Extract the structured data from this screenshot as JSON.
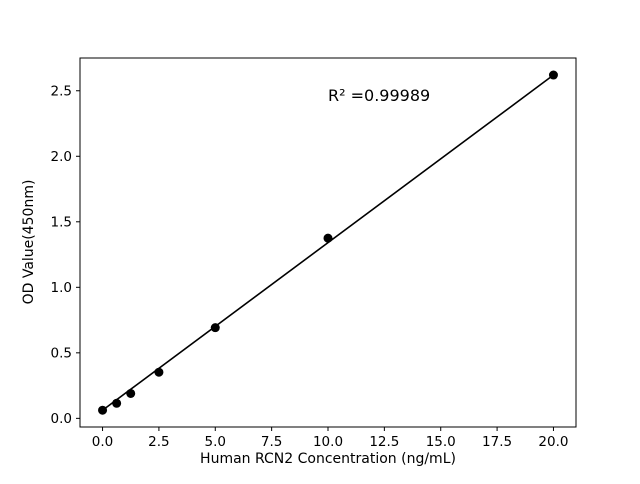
{
  "figure": {
    "background": "#ffffff"
  },
  "chart_data": {
    "type": "scatter",
    "xlabel": "Human RCN2 Concentration (ng/mL)",
    "ylabel": "OD Value(450nm)",
    "x": [
      0,
      0.625,
      1.25,
      2.5,
      5,
      10,
      20
    ],
    "y": [
      0.062,
      0.115,
      0.19,
      0.352,
      0.692,
      1.375,
      2.62
    ],
    "fit_line": {
      "x1": 0,
      "y1": 0.062,
      "x2": 20,
      "y2": 2.62
    },
    "xlim": [
      -1.0,
      21.0
    ],
    "ylim": [
      -0.066,
      2.75
    ],
    "xticks": [
      0.0,
      2.5,
      5.0,
      7.5,
      10.0,
      12.5,
      15.0,
      17.5,
      20.0
    ],
    "xtick_labels": [
      "0.0",
      "2.5",
      "5.0",
      "7.5",
      "10.0",
      "12.5",
      "15.0",
      "17.5",
      "20.0"
    ],
    "yticks": [
      0.0,
      0.5,
      1.0,
      1.5,
      2.0,
      2.5
    ],
    "ytick_labels": [
      "0.0",
      "0.5",
      "1.0",
      "1.5",
      "2.0",
      "2.5"
    ],
    "grid": false,
    "marker_color": "#000000",
    "line_color": "#000000",
    "axis_color": "#000000",
    "annotation": {
      "text": "R² =0.99989",
      "x": 10.0,
      "y": 2.42
    }
  }
}
